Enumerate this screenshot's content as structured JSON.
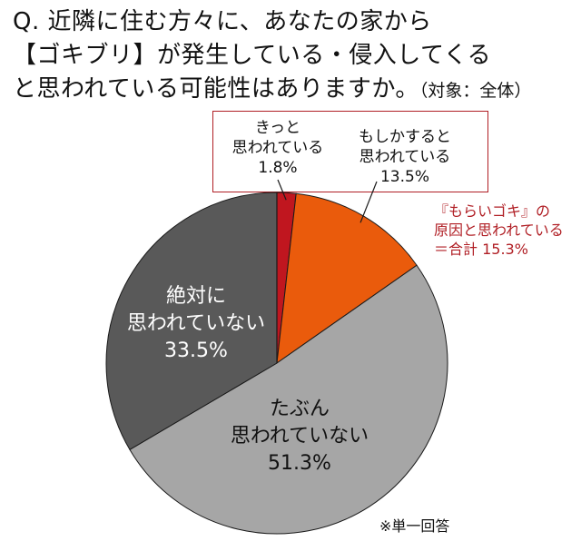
{
  "question": {
    "line1": "Q. 近隣に住む方々に、あなたの家から",
    "line2": "【ゴキブリ】が発生している・侵入してくる",
    "line3": "と思われている可能性はありますか。",
    "scope": "（対象：全体）"
  },
  "chart_data": {
    "type": "pie",
    "start_angle_deg": 0,
    "direction": "clockwise",
    "slices": [
      {
        "label_lines": [
          "きっと",
          "思われている"
        ],
        "value": 1.8,
        "value_label": "1.8%",
        "color": "#c0161f"
      },
      {
        "label_lines": [
          "もしかすると",
          "思われている"
        ],
        "value": 13.5,
        "value_label": "13.5%",
        "color": "#ea5b0c"
      },
      {
        "label_lines": [
          "たぶん",
          "思われていない"
        ],
        "value": 51.3,
        "value_label": "51.3%",
        "color": "#a6a6a6"
      },
      {
        "label_lines": [
          "絶対に",
          "思われていない"
        ],
        "value": 33.5,
        "value_label": "33.5%",
        "color": "#595959"
      }
    ],
    "annotation": {
      "lines": [
        "『もらいゴキ』の",
        "原因と思われている",
        "＝合計 15.3%"
      ],
      "color": "#b01e24"
    }
  },
  "note": "※単一回答"
}
